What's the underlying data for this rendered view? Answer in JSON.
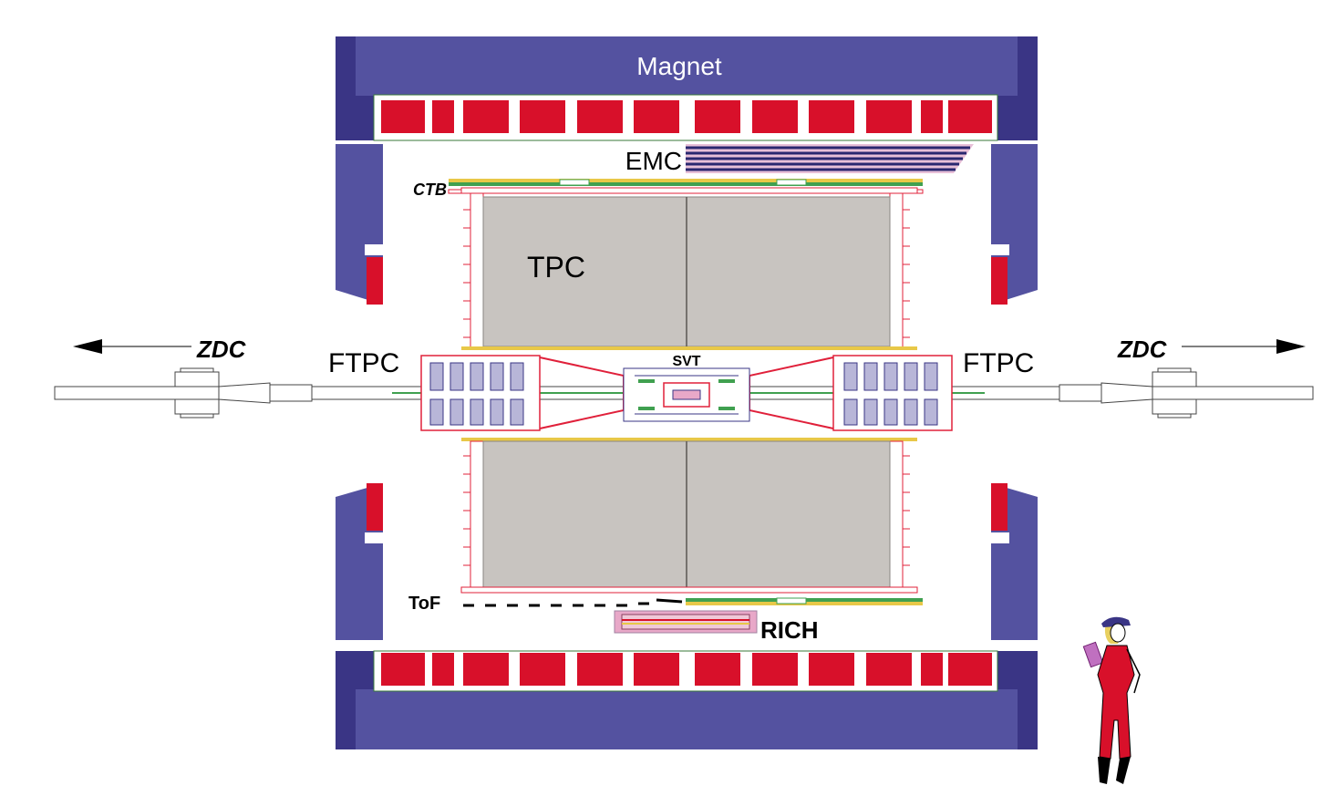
{
  "labels": {
    "magnet": "Magnet",
    "emc": "EMC",
    "ctb": "CTB",
    "tpc": "TPC",
    "ftpc_left": "FTPC",
    "ftpc_right": "FTPC",
    "zdc_left": "ZDC",
    "zdc_right": "ZDC",
    "svt": "SVT",
    "tof": "ToF",
    "rich": "RICH"
  },
  "colors": {
    "magnet": "#5452a0",
    "magnet_dark": "#3a3585",
    "coil": "#d8102a",
    "tpc": "#c8c4c0",
    "structure_red": "#e0203a",
    "beam": "#40a050",
    "support_yellow": "#e8c848",
    "rich_pink": "#e8a8c8"
  },
  "icons": {
    "zdc_left_arrow": "arrow-left-icon",
    "zdc_right_arrow": "arrow-right-icon",
    "human_scale": "person-icon"
  }
}
